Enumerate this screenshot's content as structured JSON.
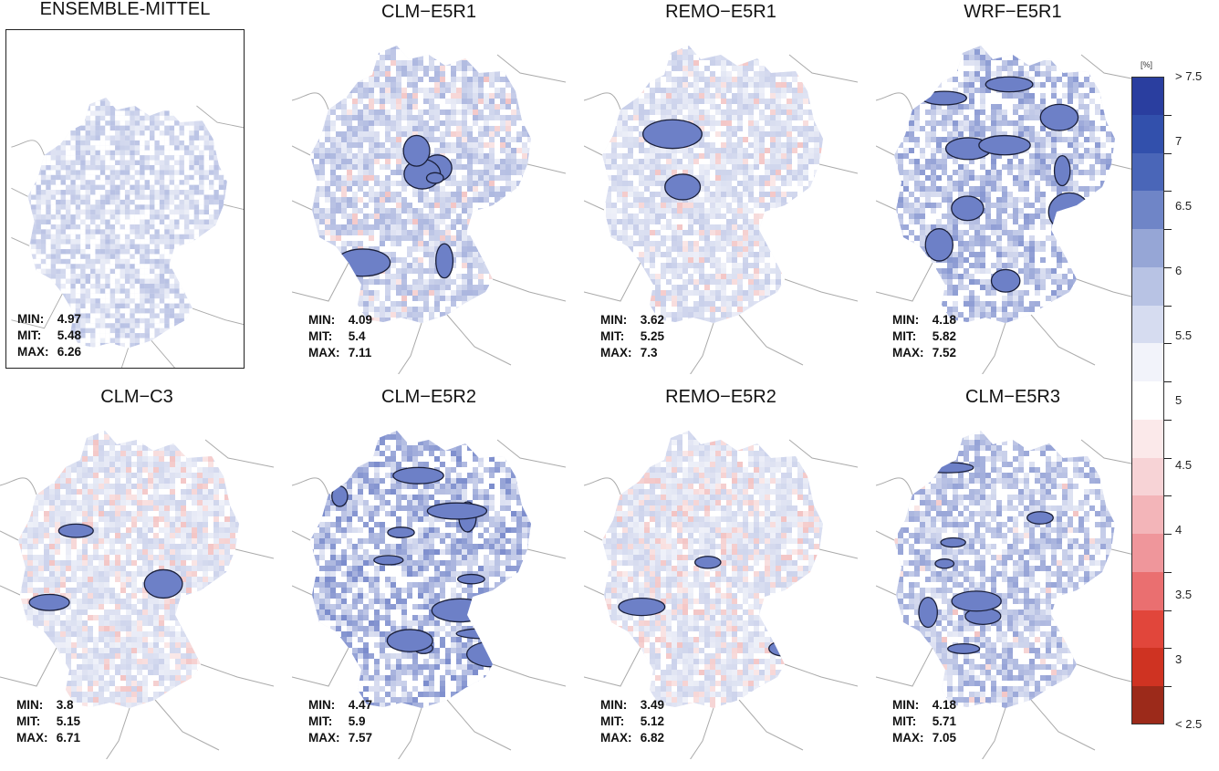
{
  "panels": [
    {
      "title": "ENSEMBLE-MITTEL",
      "min_label": "MIN:",
      "mit_label": "MIT:",
      "max_label": "MAX:",
      "min": "4.97",
      "mit": "5.48",
      "max": "6.26",
      "boxed": true,
      "intensity": 0.45,
      "red_share": 0.0,
      "contours": 0
    },
    {
      "title": "CLM−E5R1",
      "min_label": "MIN:",
      "mit_label": "MIT:",
      "max_label": "MAX:",
      "min": "4.09",
      "mit": "5.4",
      "max": "7.11",
      "boxed": false,
      "intensity": 0.55,
      "red_share": 0.15,
      "contours": 6
    },
    {
      "title": "REMO−E5R1",
      "min_label": "MIN:",
      "mit_label": "MIT:",
      "max_label": "MAX:",
      "min": "3.62",
      "mit": "5.25",
      "max": "7.3",
      "boxed": false,
      "intensity": 0.35,
      "red_share": 0.2,
      "contours": 2
    },
    {
      "title": "WRF−E5R1",
      "min_label": "MIN:",
      "mit_label": "MIT:",
      "max_label": "MAX:",
      "min": "4.18",
      "mit": "5.82",
      "max": "7.52",
      "boxed": false,
      "intensity": 0.8,
      "red_share": 0.0,
      "contours": 10
    },
    {
      "title": "CLM−C3",
      "min_label": "MIN:",
      "mit_label": "MIT:",
      "max_label": "MAX:",
      "min": "3.8",
      "mit": "5.15",
      "max": "6.71",
      "boxed": false,
      "intensity": 0.3,
      "red_share": 0.3,
      "contours": 3
    },
    {
      "title": "CLM−E5R2",
      "min_label": "MIN:",
      "mit_label": "MIT:",
      "max_label": "MAX:",
      "min": "4.47",
      "mit": "5.9",
      "max": "7.57",
      "boxed": false,
      "intensity": 0.9,
      "red_share": 0.0,
      "contours": 12
    },
    {
      "title": "REMO−E5R2",
      "min_label": "MIN:",
      "mit_label": "MIT:",
      "max_label": "MAX:",
      "min": "3.49",
      "mit": "5.12",
      "max": "6.82",
      "boxed": false,
      "intensity": 0.3,
      "red_share": 0.35,
      "contours": 3
    },
    {
      "title": "CLM−E5R3",
      "min_label": "MIN:",
      "mit_label": "MIT:",
      "max_label": "MAX:",
      "min": "4.18",
      "mit": "5.71",
      "max": "7.05",
      "boxed": false,
      "intensity": 0.7,
      "red_share": 0.05,
      "contours": 8
    }
  ],
  "colorbar": {
    "unit": "[%]",
    "labels": [
      "> 7.5",
      "7",
      "6.5",
      "6",
      "5.5",
      "5",
      "4.5",
      "4",
      "3.5",
      "3",
      "< 2.5"
    ],
    "colors": [
      "#2a3e9f",
      "#3250ac",
      "#4a66b8",
      "#6f85c7",
      "#96a6d6",
      "#b8c3e4",
      "#d6dcf0",
      "#f2f3fa",
      "#ffffff",
      "#fbe9ea",
      "#f7d3d6",
      "#f3b5b9",
      "#ef969b",
      "#ea6f70",
      "#e1463b",
      "#cf3322",
      "#9c2a1a"
    ]
  },
  "style": {
    "blue_base": "#3c55b4",
    "red_base": "#e06a6a",
    "land": "#ffffff",
    "border": "#aaaaaa",
    "contour": "#1a1f3a"
  }
}
